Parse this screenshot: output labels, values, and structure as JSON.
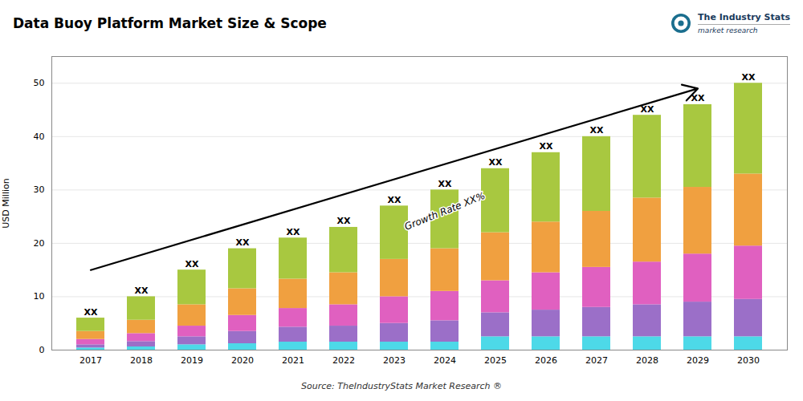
{
  "chart_data": {
    "type": "bar",
    "stacked": true,
    "title": "Data Buoy Platform Market Size & Scope",
    "ylabel": "USD Million",
    "source": "Source: TheIndustryStats Market Research ®",
    "logo": {
      "title": "The Industry Stats",
      "subtitle": "market research"
    },
    "categories": [
      "2017",
      "2018",
      "2019",
      "2020",
      "2021",
      "2022",
      "2023",
      "2024",
      "2025",
      "2026",
      "2027",
      "2028",
      "2029",
      "2030"
    ],
    "series": [
      {
        "color": "#4DD9E8",
        "values": [
          0.4,
          0.6,
          1.0,
          1.2,
          1.5,
          1.5,
          1.5,
          1.5,
          2.5,
          2.5,
          2.5,
          2.5,
          2.5,
          2.5
        ]
      },
      {
        "color": "#9B6FC8",
        "values": [
          0.6,
          1.0,
          1.5,
          2.3,
          2.8,
          3.0,
          3.5,
          4.0,
          4.5,
          5.0,
          5.5,
          6.0,
          6.5,
          7.0
        ]
      },
      {
        "color": "#E060C0",
        "values": [
          1.0,
          1.5,
          2.0,
          3.0,
          3.5,
          4.0,
          5.0,
          5.5,
          6.0,
          7.0,
          7.5,
          8.0,
          9.0,
          10.0
        ]
      },
      {
        "color": "#F0A040",
        "values": [
          1.5,
          2.5,
          4.0,
          5.0,
          5.5,
          6.0,
          7.0,
          8.0,
          9.0,
          9.5,
          10.5,
          12.0,
          12.5,
          13.5
        ]
      },
      {
        "color": "#A8C840",
        "values": [
          2.5,
          4.4,
          6.5,
          7.5,
          7.7,
          8.5,
          10.0,
          11.0,
          12.0,
          13.0,
          14.0,
          15.5,
          15.5,
          17.0
        ]
      }
    ],
    "annotations": [
      {
        "text": "XX",
        "x": "2017",
        "y": 6
      },
      {
        "text": "XX",
        "x": "2018",
        "y": 10
      },
      {
        "text": "XX",
        "x": "2019",
        "y": 15
      },
      {
        "text": "XX",
        "x": "2020",
        "y": 19
      },
      {
        "text": "XX",
        "x": "2021",
        "y": 21
      },
      {
        "text": "XX",
        "x": "2022",
        "y": 23
      },
      {
        "text": "XX",
        "x": "2023",
        "y": 27
      },
      {
        "text": "XX",
        "x": "2024",
        "y": 30
      },
      {
        "text": "XX",
        "x": "2025",
        "y": 34
      },
      {
        "text": "XX",
        "x": "2026",
        "y": 37
      },
      {
        "text": "XX",
        "x": "2027",
        "y": 40
      },
      {
        "text": "XX",
        "x": "2028",
        "y": 44
      },
      {
        "text": "XX",
        "x": "2029",
        "y": 46
      },
      {
        "text": "XX",
        "x": "2030",
        "y": 50
      },
      {
        "text": "Growth Rate XX%",
        "x": "2024",
        "y": 26,
        "arrow": {
          "x1": "2017",
          "y1": 15,
          "x2": "2029",
          "y2": 49
        }
      }
    ],
    "ylim": [
      0,
      55
    ],
    "yticks": [
      0,
      10,
      20,
      30,
      40,
      50
    ],
    "grid": true
  }
}
